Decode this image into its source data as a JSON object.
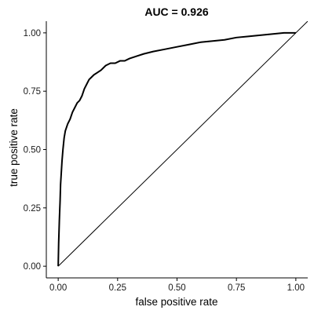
{
  "chart_data": {
    "type": "line",
    "title": "AUC = 0.926",
    "xlabel": "false positive rate",
    "ylabel": "true positive rate",
    "xlim": [
      -0.05,
      1.05
    ],
    "ylim": [
      -0.05,
      1.05
    ],
    "x_ticks": [
      0,
      0.25,
      0.5,
      0.75,
      1
    ],
    "x_tick_labels": [
      "0.00",
      "0.25",
      "0.50",
      "0.75",
      "1.00"
    ],
    "y_ticks": [
      0,
      0.25,
      0.5,
      0.75,
      1
    ],
    "y_tick_labels": [
      "0.00",
      "0.25",
      "0.50",
      "0.75",
      "1.00"
    ],
    "grid": false,
    "legend": "none",
    "series": [
      {
        "line_color": "#000000",
        "x": [
          0,
          0.002,
          0.005,
          0.008,
          0.01,
          0.013,
          0.016,
          0.02,
          0.025,
          0.03,
          0.04,
          0.05,
          0.06,
          0.07,
          0.08,
          0.09,
          0.1,
          0.11,
          0.12,
          0.13,
          0.14,
          0.15,
          0.165,
          0.18,
          0.2,
          0.22,
          0.24,
          0.26,
          0.28,
          0.3,
          0.33,
          0.36,
          0.4,
          0.45,
          0.5,
          0.55,
          0.6,
          0.65,
          0.7,
          0.75,
          0.8,
          0.85,
          0.9,
          0.95,
          1
        ],
        "y": [
          0,
          0.1,
          0.2,
          0.28,
          0.35,
          0.4,
          0.45,
          0.5,
          0.55,
          0.58,
          0.61,
          0.63,
          0.66,
          0.68,
          0.7,
          0.71,
          0.73,
          0.76,
          0.78,
          0.8,
          0.81,
          0.82,
          0.83,
          0.84,
          0.86,
          0.87,
          0.87,
          0.88,
          0.88,
          0.89,
          0.9,
          0.91,
          0.92,
          0.93,
          0.94,
          0.95,
          0.96,
          0.965,
          0.97,
          0.98,
          0.985,
          0.99,
          0.995,
          1,
          1
        ]
      }
    ],
    "reference_line": {
      "x": [
        0,
        1.05
      ],
      "y": [
        0,
        1.05
      ],
      "line_color": "#000000"
    }
  }
}
